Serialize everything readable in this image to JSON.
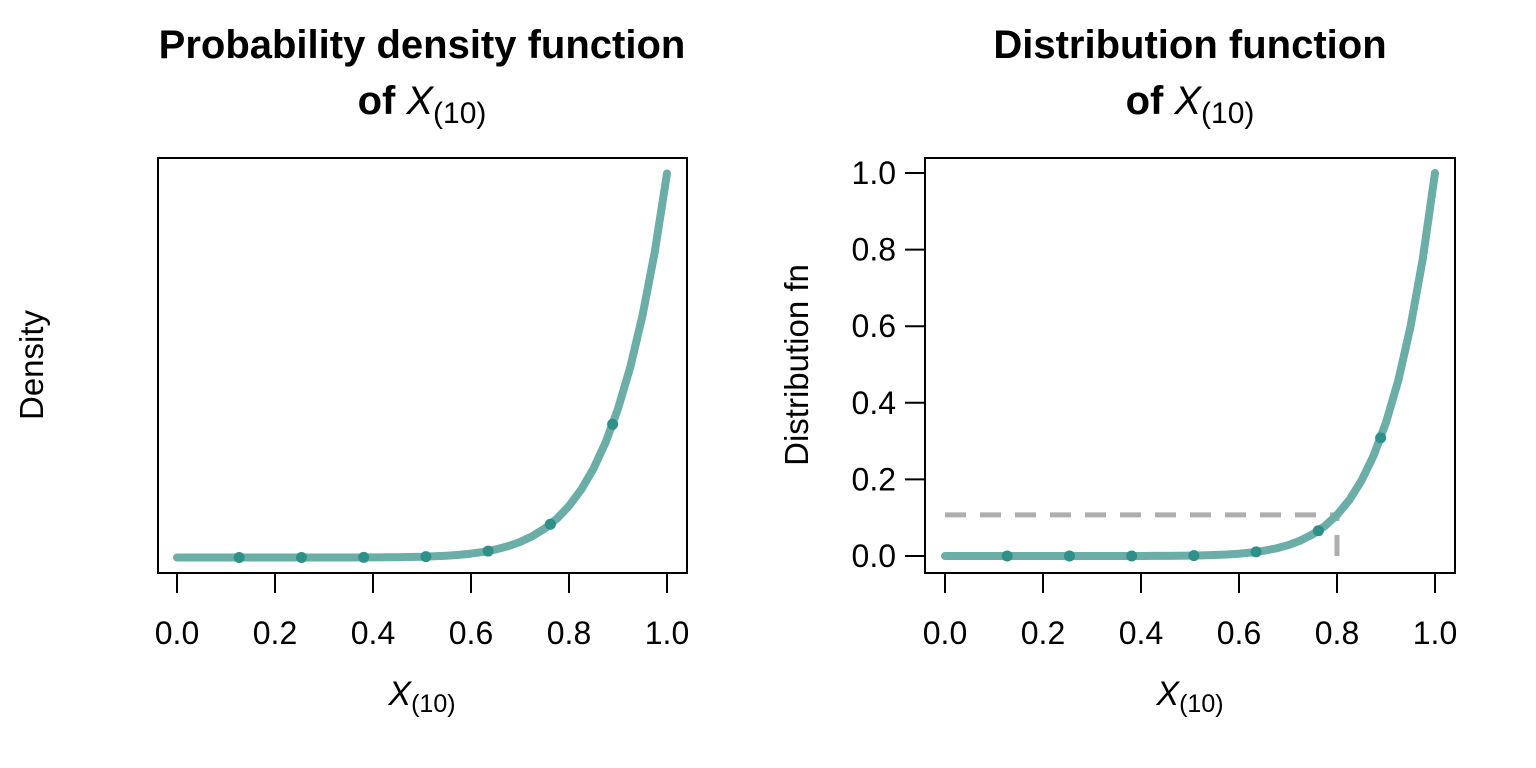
{
  "figure": {
    "background": "#ffffff",
    "panels": 2
  },
  "colors": {
    "background": "#ffffff",
    "curve": "#6bada7",
    "point": "#2f8f89",
    "reference": "#aeaeae",
    "axis": "#000000",
    "text": "#000000"
  },
  "chart_data": [
    {
      "id": "pdf",
      "type": "line",
      "title_line1": "Probability density function",
      "title_line2_prefix": "of",
      "title_line2_var": "X",
      "title_line2_sub": "(10)",
      "xlabel_var": "X",
      "xlabel_sub": "(10)",
      "ylabel": "Density",
      "xlim": [
        0,
        1
      ],
      "ylim": [
        0,
        10
      ],
      "grid": false,
      "legend": null,
      "x_tick_values": [
        0,
        0.2,
        0.4,
        0.6,
        0.8,
        1.0
      ],
      "x_tick_labels": [
        "0.0",
        "0.2",
        "0.4",
        "0.6",
        "0.8",
        "1.0"
      ],
      "y_tick_values": [],
      "y_tick_labels": [],
      "curve": {
        "x": [
          0,
          0.05,
          0.1,
          0.15,
          0.2,
          0.25,
          0.3,
          0.35,
          0.4,
          0.425,
          0.45,
          0.475,
          0.5,
          0.525,
          0.55,
          0.575,
          0.6,
          0.625,
          0.65,
          0.675,
          0.7,
          0.725,
          0.75,
          0.775,
          0.8,
          0.825,
          0.85,
          0.875,
          0.9,
          0.925,
          0.95,
          0.975,
          1
        ],
        "y": [
          0,
          0,
          0,
          0,
          1e-05,
          4e-05,
          0.0002,
          0.00079,
          0.00262,
          0.00452,
          0.00757,
          0.01231,
          0.01953,
          0.0303,
          0.04605,
          0.0687,
          0.10078,
          0.14552,
          0.20712,
          0.29089,
          0.40354,
          0.55341,
          0.75085,
          1.00859,
          1.34218,
          1.77046,
          2.31617,
          3.00658,
          3.8742,
          4.95765,
          6.30249,
          7.96236,
          10
        ]
      },
      "points": {
        "x": [
          0.127,
          0.254,
          0.381,
          0.508,
          0.635,
          0.762,
          0.889
        ],
        "y": [
          0,
          4e-05,
          0.00169,
          0.02253,
          0.16787,
          0.86615,
          3.46829
        ]
      },
      "reference_lines": []
    },
    {
      "id": "cdf",
      "type": "line",
      "title_line1": "Distribution function",
      "title_line2_prefix": "of",
      "title_line2_var": "X",
      "title_line2_sub": "(10)",
      "xlabel_var": "X",
      "xlabel_sub": "(10)",
      "ylabel": "Distribution fn",
      "xlim": [
        0,
        1
      ],
      "ylim": [
        0,
        1
      ],
      "grid": false,
      "legend": null,
      "x_tick_values": [
        0,
        0.2,
        0.4,
        0.6,
        0.8,
        1.0
      ],
      "x_tick_labels": [
        "0.0",
        "0.2",
        "0.4",
        "0.6",
        "0.8",
        "1.0"
      ],
      "y_tick_values": [
        0,
        0.2,
        0.4,
        0.6,
        0.8,
        1.0
      ],
      "y_tick_labels": [
        "0.0",
        "0.2",
        "0.4",
        "0.6",
        "0.8",
        "1.0"
      ],
      "curve": {
        "x": [
          0,
          0.05,
          0.1,
          0.15,
          0.2,
          0.25,
          0.3,
          0.35,
          0.4,
          0.425,
          0.45,
          0.475,
          0.5,
          0.525,
          0.55,
          0.575,
          0.6,
          0.625,
          0.65,
          0.675,
          0.7,
          0.725,
          0.75,
          0.775,
          0.8,
          0.825,
          0.85,
          0.875,
          0.9,
          0.925,
          0.95,
          0.975,
          1
        ],
        "y": [
          0,
          0,
          0,
          0,
          0,
          1e-06,
          6e-06,
          2.8e-05,
          0.000105,
          0.000192,
          0.00034,
          0.000585,
          0.000977,
          0.001591,
          0.002533,
          0.003951,
          0.006047,
          0.009095,
          0.013463,
          0.019635,
          0.028248,
          0.040122,
          0.056314,
          0.078166,
          0.107374,
          0.146063,
          0.196874,
          0.263076,
          0.348678,
          0.458583,
          0.598737,
          0.77633,
          1
        ]
      },
      "points": {
        "x": [
          0.127,
          0.254,
          0.381,
          0.508,
          0.635,
          0.762,
          0.889
        ],
        "y": [
          0,
          1e-06,
          6.5e-05,
          0.001145,
          0.01066,
          0.066,
          0.308331
        ]
      },
      "reference_lines": [
        {
          "orientation": "horizontal",
          "y": 0.10737,
          "x_from": 0,
          "x_to": 0.8
        },
        {
          "orientation": "vertical",
          "x": 0.8,
          "y_from": 0,
          "y_to": 0.10737
        }
      ]
    }
  ]
}
